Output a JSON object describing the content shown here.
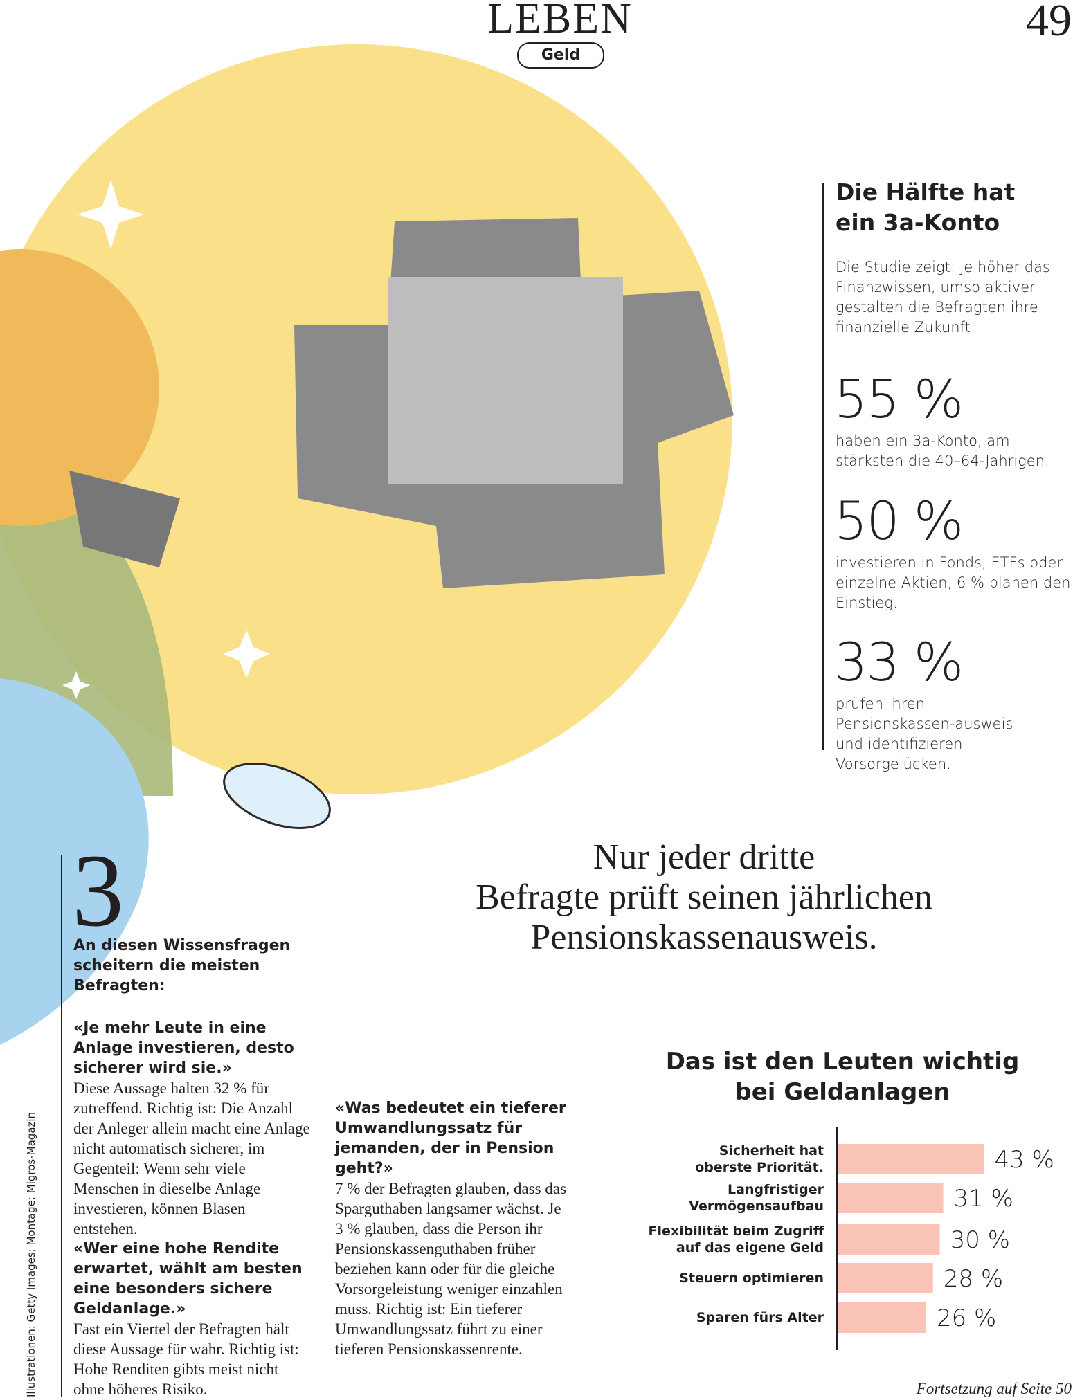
{
  "header": {
    "section": "LEBEN",
    "tag": "Geld",
    "page_number": "49"
  },
  "sidebar": {
    "title": "Die Hälfte hat\nein 3a-Konto",
    "intro": "Die Studie zeigt: je höher das Finanzwissen, umso aktiver gestalten die Befragten ihre finanzielle Zukunft:",
    "stats": [
      {
        "value": "55 %",
        "text": "haben ein 3a-Konto, am stärksten die 40–64-Jährigen."
      },
      {
        "value": "50 %",
        "text": "investieren in Fonds, ETFs oder einzelne Aktien, 6 % planen den Einstieg."
      },
      {
        "value": "33 %",
        "text": "prüfen ihren Pensionskassen-ausweis und identifizieren Vorsorgelücken."
      }
    ]
  },
  "pull_quote": "Nur jeder dritte\nBefragte prüft seinen jährlichen\nPensionskassenausweis.",
  "quiz": {
    "number": "3",
    "heading": "An diesen Wissensfragen scheitern die meisten Befragten:",
    "items": [
      {
        "question": "«Je mehr Leute in eine Anlage investieren, desto sicherer wird sie.»",
        "answer": "Diese Aussage halten 32 % für zutreffend. Richtig ist: Die Anzahl der Anleger allein macht eine Anlage nicht automatisch sicherer, im Gegenteil: Wenn sehr viele Menschen in dieselbe Anlage investieren, können Blasen entstehen."
      },
      {
        "question": "«Wer eine hohe Rendite erwartet, wählt am besten eine besonders sichere Geldanlage.»",
        "answer": "Fast ein Viertel der Befragten hält diese Aussage für wahr. Richtig ist: Hohe Renditen gibts meist nicht ohne höheres Risiko."
      },
      {
        "question": "«Was bedeutet ein tieferer Umwandlungssatz für jemanden, der in Pension geht?»",
        "answer": "7 % der Befragten glauben, dass das Sparguthaben langsamer wächst. Je 3 % glauben, dass die Person ihr Pensionskassenguthaben früher beziehen kann oder für die gleiche Vorsorgeleistung weniger einzahlen muss. Richtig ist: Ein tieferer Umwandlungssatz führt zu einer tieferen Pensionskassenrente."
      }
    ]
  },
  "chart_data": {
    "type": "bar",
    "orientation": "horizontal",
    "title": "Das ist den Leuten wichtig\nbei Geldanlagen",
    "categories": [
      "Sicherheit hat\noberste Priorität.",
      "Langfristiger\nVermögensaufbau",
      "Flexibilität beim Zugriff\nauf das eigene Geld",
      "Steuern optimieren",
      "Sparen fürs Alter"
    ],
    "values": [
      43,
      31,
      30,
      28,
      26
    ],
    "value_labels": [
      "43 %",
      "31 %",
      "30 %",
      "28 %",
      "26 %"
    ],
    "color": "#f9c3b5",
    "xlim": [
      0,
      50
    ]
  },
  "footer": "Fortsetzung auf Seite 50",
  "credit": "Illustrationen: Getty Images; Montage: Migros-Magazin"
}
